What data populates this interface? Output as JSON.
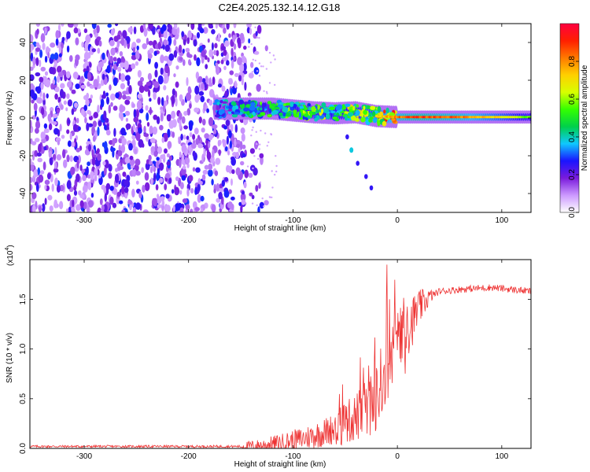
{
  "title": "C2E4.2025.132.14.12.G18",
  "chart_data": [
    {
      "type": "heatmap",
      "xlabel": "Height of straight line (km)",
      "ylabel": "Frequency (Hz)",
      "xlim": [
        -352,
        128
      ],
      "ylim": [
        -50,
        50
      ],
      "x_ticks": [
        -300,
        -200,
        -100,
        0,
        100
      ],
      "x_tick_labels": [
        "-300",
        "-200",
        "-100",
        "0",
        "100"
      ],
      "y_ticks": [
        -40,
        -20,
        0,
        20,
        40
      ],
      "y_tick_labels": [
        "-40",
        "-20",
        "0",
        "20",
        "40"
      ],
      "colorbar": {
        "label": "Normalized spectral amplitude",
        "range": [
          0,
          1
        ],
        "ticks": [
          0.0,
          0.2,
          0.4,
          0.6,
          0.8
        ],
        "tick_labels": [
          "0.0",
          "0.2",
          "0.4",
          "0.6",
          "0.8"
        ],
        "colors": [
          "#ffffff",
          "#cc99ff",
          "#7a1bdc",
          "#1a14ff",
          "#0fc8ff",
          "#00d04a",
          "#33ff00",
          "#d8ff00",
          "#ffd000",
          "#ff7a00",
          "#ff1f00",
          "#ff0040"
        ]
      },
      "noise_region_x": [
        -352,
        -145
      ],
      "signal_trace": [
        {
          "x": -200,
          "f": 5,
          "amp": 0.28
        },
        {
          "x": -160,
          "f": 5,
          "amp": 0.35
        },
        {
          "x": -140,
          "f": 5,
          "amp": 0.45
        },
        {
          "x": -120,
          "f": 5,
          "amp": 0.5
        },
        {
          "x": -100,
          "f": 4,
          "amp": 0.55
        },
        {
          "x": -80,
          "f": 3,
          "amp": 0.55
        },
        {
          "x": -60,
          "f": 2.5,
          "amp": 0.6
        },
        {
          "x": -40,
          "f": 3,
          "amp": 0.6
        },
        {
          "x": -20,
          "f": 1,
          "amp": 0.7
        },
        {
          "x": 0,
          "f": 0.5,
          "amp": 0.85
        },
        {
          "x": 20,
          "f": 0.5,
          "amp": 0.9
        },
        {
          "x": 60,
          "f": 0.5,
          "amp": 0.85
        },
        {
          "x": 100,
          "f": 0.5,
          "amp": 0.7
        },
        {
          "x": 128,
          "f": 0.5,
          "amp": 0.55
        }
      ],
      "descending_branch": [
        {
          "x": -48,
          "f": -10
        },
        {
          "x": -44,
          "f": -17
        },
        {
          "x": -38,
          "f": -24
        },
        {
          "x": -30,
          "f": -31
        },
        {
          "x": -25,
          "f": -37
        }
      ]
    },
    {
      "type": "line",
      "xlabel": "Height of straight line (km)",
      "ylabel": "SNR (10 * v/v)",
      "y_multiplier_base": "(x10",
      "y_multiplier_exp": "4",
      "y_multiplier_close": ")",
      "xlim": [
        -352,
        128
      ],
      "ylim": [
        0,
        1.9
      ],
      "x_ticks": [
        -300,
        -200,
        -100,
        0,
        100
      ],
      "x_tick_labels": [
        "-300",
        "-200",
        "-100",
        "0",
        "100"
      ],
      "y_ticks": [
        0.0,
        0.5,
        1.0,
        1.5
      ],
      "y_tick_labels": [
        "0.0",
        "0.5",
        "1.0",
        "1.5"
      ],
      "color": "#ee3333",
      "trend": [
        {
          "x": -352,
          "y": 0.02
        },
        {
          "x": -150,
          "y": 0.02
        },
        {
          "x": -130,
          "y": 0.03
        },
        {
          "x": -110,
          "y": 0.06
        },
        {
          "x": -90,
          "y": 0.1
        },
        {
          "x": -70,
          "y": 0.16
        },
        {
          "x": -50,
          "y": 0.25
        },
        {
          "x": -30,
          "y": 0.38
        },
        {
          "x": -20,
          "y": 0.5
        },
        {
          "x": -10,
          "y": 0.75
        },
        {
          "x": 0,
          "y": 1.0
        },
        {
          "x": 10,
          "y": 1.2
        },
        {
          "x": 20,
          "y": 1.4
        },
        {
          "x": 30,
          "y": 1.52
        },
        {
          "x": 40,
          "y": 1.58
        },
        {
          "x": 60,
          "y": 1.6
        },
        {
          "x": 90,
          "y": 1.62
        },
        {
          "x": 128,
          "y": 1.58
        }
      ],
      "peak": {
        "x": -10,
        "y": 1.85
      }
    }
  ]
}
